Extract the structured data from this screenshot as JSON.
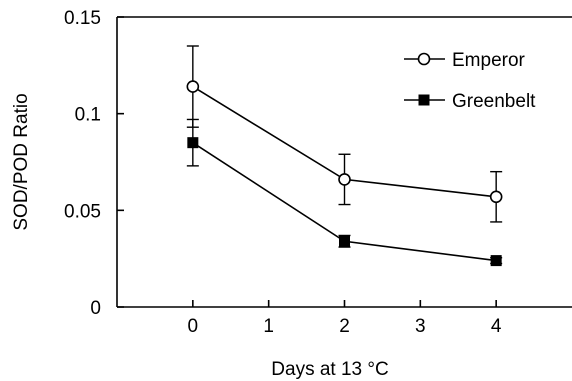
{
  "chart_data": {
    "type": "line",
    "title": "",
    "xlabel": "Days at 13 °C",
    "ylabel": "SOD/POD Ratio",
    "xlim": [
      -1,
      5
    ],
    "ylim": [
      0,
      0.15
    ],
    "x_ticks": [
      0,
      1,
      2,
      3,
      4
    ],
    "x_tick_labels": [
      "0",
      "1",
      "2",
      "3",
      "4"
    ],
    "y_ticks": [
      0,
      0.05,
      0.1,
      0.15
    ],
    "y_tick_labels": [
      "0",
      "0.05",
      "0.1",
      "0.15"
    ],
    "grid": false,
    "legend_position": "top-right",
    "series": [
      {
        "name": "Emperor",
        "marker": "open-circle",
        "x": [
          0,
          2,
          4
        ],
        "values": [
          0.114,
          0.066,
          0.057
        ],
        "error": [
          0.021,
          0.013,
          0.013
        ]
      },
      {
        "name": "Greenbelt",
        "marker": "filled-square",
        "x": [
          0,
          2,
          4
        ],
        "values": [
          0.085,
          0.034,
          0.024
        ],
        "error": [
          0.012,
          0.003,
          0.0015
        ]
      }
    ]
  }
}
